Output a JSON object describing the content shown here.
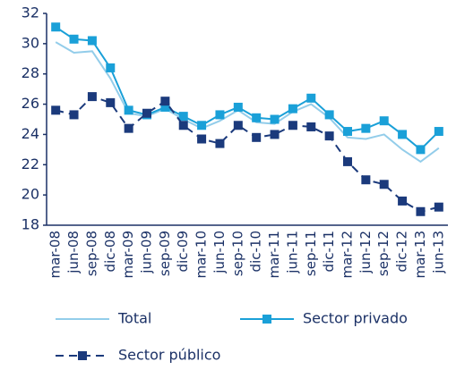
{
  "chart_data": {
    "type": "line",
    "categories": [
      "mar-08",
      "jun-08",
      "sep-08",
      "dic-08",
      "mar-09",
      "jun-09",
      "sep-09",
      "dic-09",
      "mar-10",
      "jun-10",
      "sep-10",
      "dic-10",
      "mar-11",
      "jun-11",
      "sep-11",
      "dic-11",
      "mar-12",
      "jun-12",
      "sep-12",
      "dic-12",
      "mar-13",
      "jun-13"
    ],
    "series": [
      {
        "name": "Total",
        "color": "#93cdea",
        "style": "solid",
        "marker": false,
        "values": [
          30.1,
          29.4,
          29.5,
          27.7,
          25.4,
          25.2,
          25.7,
          25.0,
          24.4,
          24.9,
          25.6,
          24.8,
          24.7,
          25.5,
          26.0,
          25.1,
          23.8,
          23.7,
          24.0,
          23.0,
          22.2,
          23.1
        ]
      },
      {
        "name": "Sector privado",
        "color": "#1aa0d8",
        "style": "solid",
        "marker": true,
        "values": [
          31.1,
          30.3,
          30.2,
          28.4,
          25.6,
          25.3,
          25.8,
          25.2,
          24.6,
          25.3,
          25.8,
          25.1,
          25.0,
          25.7,
          26.4,
          25.3,
          24.2,
          24.4,
          24.9,
          24.0,
          23.0,
          24.2
        ]
      },
      {
        "name": "Sector público",
        "color": "#1b3a7c",
        "style": "dashed",
        "marker": true,
        "values": [
          25.6,
          25.3,
          26.5,
          26.1,
          24.4,
          25.4,
          26.2,
          24.6,
          23.7,
          23.4,
          24.6,
          23.8,
          24.0,
          24.6,
          24.5,
          23.9,
          22.2,
          21.0,
          20.7,
          19.6,
          18.9,
          19.2
        ]
      }
    ],
    "ylim": [
      18,
      32
    ],
    "yticks": [
      18,
      20,
      22,
      24,
      26,
      28,
      30,
      32
    ],
    "grid": false
  }
}
